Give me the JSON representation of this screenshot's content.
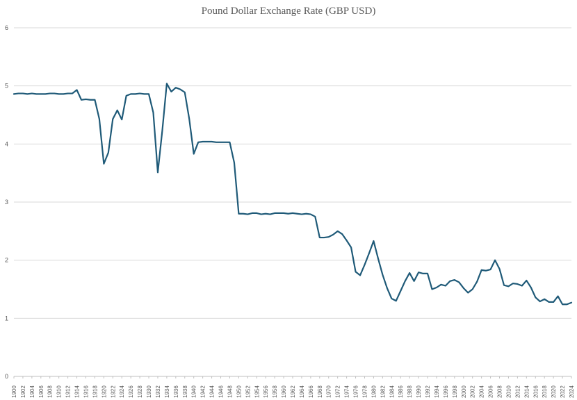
{
  "chart_data": {
    "type": "line",
    "title": "Pound Dollar Exchange Rate (GBP USD)",
    "xlabel": "",
    "ylabel": "",
    "ylim": [
      0,
      6
    ],
    "yticks": [
      0,
      1,
      2,
      3,
      4,
      5,
      6
    ],
    "xticks": [
      1900,
      1902,
      1904,
      1906,
      1908,
      1910,
      1912,
      1914,
      1916,
      1918,
      1920,
      1922,
      1924,
      1926,
      1928,
      1930,
      1932,
      1934,
      1936,
      1938,
      1940,
      1942,
      1944,
      1946,
      1948,
      1950,
      1952,
      1954,
      1956,
      1958,
      1960,
      1962,
      1964,
      1966,
      1968,
      1970,
      1972,
      1974,
      1976,
      1978,
      1980,
      1982,
      1984,
      1986,
      1988,
      1990,
      1992,
      1994,
      1996,
      1998,
      2000,
      2002,
      2004,
      2006,
      2008,
      2010,
      2012,
      2014,
      2016,
      2018,
      2020,
      2022,
      2024
    ],
    "xlim": [
      1900,
      2024
    ],
    "grid": true,
    "legend": "none",
    "line_color": "#1f5a78",
    "series": [
      {
        "x": [
          1900,
          1901,
          1902,
          1903,
          1904,
          1905,
          1906,
          1907,
          1908,
          1909,
          1910,
          1911,
          1912,
          1913,
          1914,
          1915,
          1916,
          1917,
          1918,
          1919,
          1920,
          1921,
          1922,
          1923,
          1924,
          1925,
          1926,
          1927,
          1928,
          1929,
          1930,
          1931,
          1932,
          1933,
          1934,
          1935,
          1936,
          1937,
          1938,
          1939,
          1940,
          1941,
          1942,
          1943,
          1944,
          1945,
          1946,
          1947,
          1948,
          1949,
          1950,
          1951,
          1952,
          1953,
          1954,
          1955,
          1956,
          1957,
          1958,
          1959,
          1960,
          1961,
          1962,
          1963,
          1964,
          1965,
          1966,
          1967,
          1968,
          1969,
          1970,
          1971,
          1972,
          1973,
          1974,
          1975,
          1976,
          1977,
          1978,
          1979,
          1980,
          1981,
          1982,
          1983,
          1984,
          1985,
          1986,
          1987,
          1988,
          1989,
          1990,
          1991,
          1992,
          1993,
          1994,
          1995,
          1996,
          1997,
          1998,
          1999,
          2000,
          2001,
          2002,
          2003,
          2004,
          2005,
          2006,
          2007,
          2008,
          2009,
          2010,
          2011,
          2012,
          2013,
          2014,
          2015,
          2016,
          2017,
          2018,
          2019,
          2020,
          2021,
          2022,
          2023,
          2024
        ],
        "values": [
          4.86,
          4.87,
          4.87,
          4.86,
          4.87,
          4.86,
          4.86,
          4.86,
          4.87,
          4.87,
          4.86,
          4.86,
          4.87,
          4.87,
          4.93,
          4.76,
          4.77,
          4.76,
          4.76,
          4.43,
          3.66,
          3.85,
          4.43,
          4.58,
          4.42,
          4.83,
          4.86,
          4.86,
          4.87,
          4.86,
          4.86,
          4.54,
          3.51,
          4.23,
          5.04,
          4.9,
          4.97,
          4.94,
          4.89,
          4.43,
          3.83,
          4.03,
          4.04,
          4.04,
          4.04,
          4.03,
          4.03,
          4.03,
          4.03,
          3.68,
          2.8,
          2.8,
          2.79,
          2.81,
          2.81,
          2.79,
          2.8,
          2.79,
          2.81,
          2.81,
          2.81,
          2.8,
          2.81,
          2.8,
          2.79,
          2.8,
          2.79,
          2.75,
          2.39,
          2.39,
          2.4,
          2.44,
          2.5,
          2.45,
          2.34,
          2.22,
          1.8,
          1.74,
          1.92,
          2.12,
          2.33,
          2.03,
          1.75,
          1.52,
          1.34,
          1.3,
          1.47,
          1.64,
          1.78,
          1.64,
          1.79,
          1.77,
          1.77,
          1.5,
          1.53,
          1.58,
          1.56,
          1.64,
          1.66,
          1.62,
          1.52,
          1.44,
          1.5,
          1.63,
          1.83,
          1.82,
          1.84,
          2.0,
          1.85,
          1.57,
          1.55,
          1.6,
          1.59,
          1.56,
          1.65,
          1.53,
          1.36,
          1.29,
          1.33,
          1.28,
          1.28,
          1.38,
          1.24,
          1.24,
          1.27
        ]
      }
    ]
  }
}
